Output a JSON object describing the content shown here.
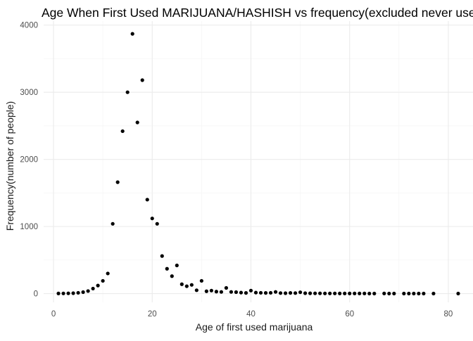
{
  "chart_data": {
    "type": "scatter",
    "title": "Age When First Used MARIJUANA/HASHISH vs frequency(excluded never used)",
    "xlabel": "Age of first used marijuana",
    "ylabel": "Frequency(number of people)",
    "xlim": [
      -2,
      85
    ],
    "ylim": [
      -130,
      4060
    ],
    "x_ticks": [
      0,
      20,
      40,
      60,
      80
    ],
    "y_ticks": [
      0,
      1000,
      2000,
      3000,
      4000
    ],
    "grid": true,
    "legend": "none",
    "point_color": "#000000",
    "series": [
      {
        "x": [
          1,
          2,
          3,
          4,
          5,
          6,
          7,
          8,
          9,
          10,
          11,
          12,
          13,
          14,
          15,
          16,
          17,
          18,
          19,
          20,
          21,
          22,
          23,
          24,
          25,
          26,
          27,
          28,
          29,
          30,
          31,
          32,
          33,
          34,
          35,
          36,
          37,
          38,
          39,
          40,
          41,
          42,
          43,
          44,
          45,
          46,
          47,
          48,
          49,
          50,
          51,
          52,
          53,
          54,
          55,
          56,
          57,
          58,
          59,
          60,
          61,
          62,
          63,
          64,
          65,
          67,
          68,
          69,
          71,
          72,
          73,
          74,
          75,
          77,
          82
        ],
        "y": [
          2,
          3,
          4,
          6,
          12,
          22,
          38,
          75,
          120,
          190,
          300,
          1040,
          1660,
          2420,
          3000,
          3870,
          2550,
          3180,
          1400,
          1120,
          1040,
          560,
          370,
          260,
          420,
          140,
          110,
          130,
          50,
          190,
          35,
          45,
          30,
          25,
          85,
          25,
          22,
          15,
          10,
          45,
          15,
          12,
          10,
          12,
          25,
          8,
          6,
          10,
          8,
          20,
          6,
          5,
          4,
          4,
          3,
          3,
          3,
          2,
          2,
          2,
          2,
          2,
          2,
          1,
          1,
          2,
          1,
          1,
          1,
          1,
          1,
          1,
          1,
          1,
          1
        ]
      }
    ]
  }
}
